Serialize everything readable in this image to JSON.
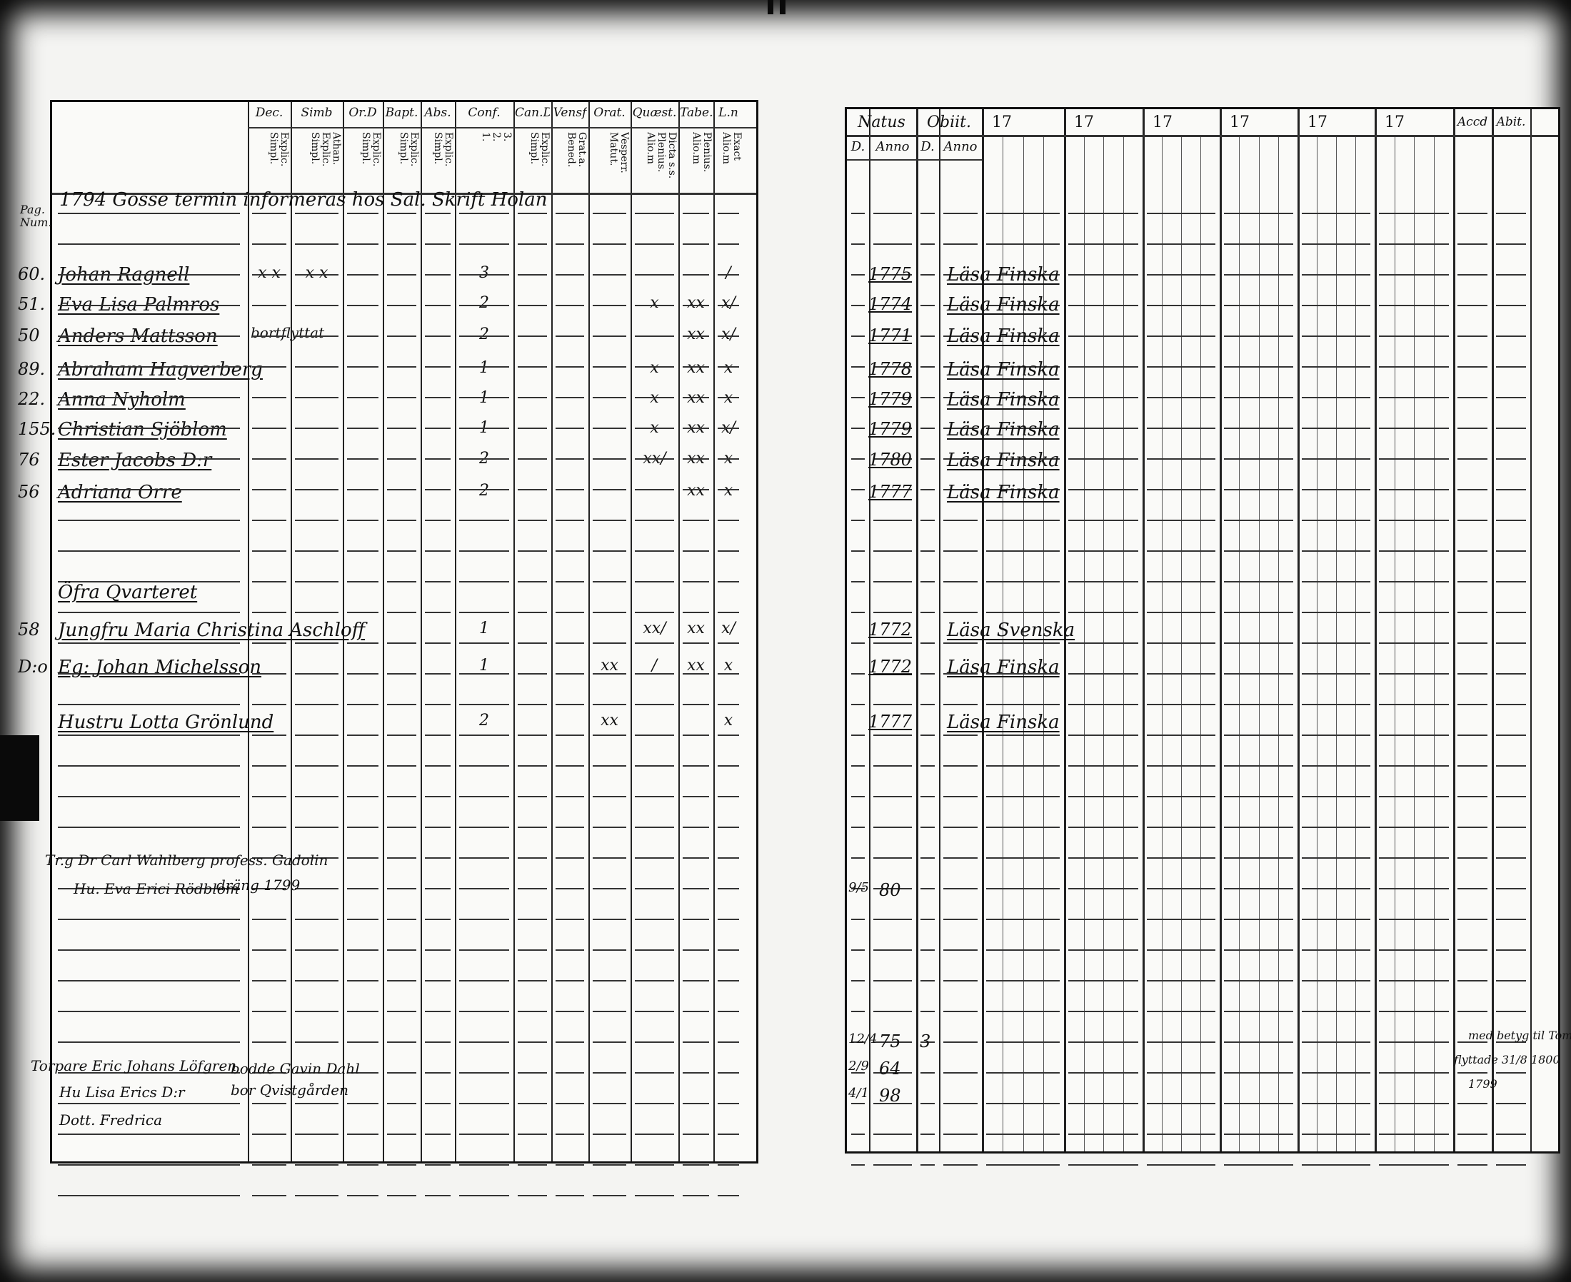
{
  "left_page": {
    "side_label": "Pag. Num.",
    "columns": [
      {
        "head": "Dec.",
        "sub": "Explic.\nSimpl."
      },
      {
        "head": "Simb",
        "sub": "Athan.\nExplic.\nSimpl."
      },
      {
        "head": "Or.D",
        "sub": "Explic.\nSimpl."
      },
      {
        "head": "Bapt.",
        "sub": "Explic.\nSimpl."
      },
      {
        "head": "Abs.",
        "sub": "Explic.\nSimpl."
      },
      {
        "head": "Conf.",
        "sub": "3.\n2.\n1."
      },
      {
        "head": "Can.D",
        "sub": "Explic.\nSimpl."
      },
      {
        "head": "Vensf",
        "sub": "Grat.a.\nBened."
      },
      {
        "head": "Orat.",
        "sub": "Vesperr.\nMatut."
      },
      {
        "head": "Quæst.",
        "sub": "Dicta s.s.\nPlenius.\nAlio.m"
      },
      {
        "head": "Tabe.",
        "sub": "Plenius.\nAlio.m"
      },
      {
        "head": "L.n",
        "sub": "Exact\nAlio.m"
      }
    ],
    "heading": "1794 Gosse termin informeras hos Sal. Skrift Holan",
    "rows": [
      {
        "num": "60.",
        "name": "Johan Ragnell",
        "marks": [
          "x x",
          "x x",
          "",
          "",
          "",
          "3",
          "",
          "",
          "",
          "",
          "",
          "/"
        ]
      },
      {
        "num": "51.",
        "name": "Eva Lisa Palmros",
        "marks": [
          "",
          "",
          "",
          "",
          "",
          "2",
          "",
          "",
          "",
          "x",
          "xx",
          "x/"
        ]
      },
      {
        "num": "50",
        "name": "Anders Mattsson",
        "note": "bortflyttat",
        "marks": [
          "",
          "",
          "",
          "",
          "",
          "2",
          "",
          "",
          "",
          "",
          "xx",
          "x/"
        ]
      },
      {
        "num": "89.",
        "name": "Abraham Hagverberg",
        "marks": [
          "",
          "",
          "",
          "",
          "",
          "1",
          "",
          "",
          "",
          "x",
          "xx",
          "x"
        ]
      },
      {
        "num": "22.",
        "name": "Anna Nyholm",
        "marks": [
          "",
          "",
          "",
          "",
          "",
          "1",
          "",
          "",
          "",
          "x",
          "xx",
          "x"
        ]
      },
      {
        "num": "155.",
        "name": "Christian Sjöblom",
        "marks": [
          "",
          "",
          "",
          "",
          "",
          "1",
          "",
          "",
          "",
          "x",
          "xx",
          "x/"
        ]
      },
      {
        "num": "76",
        "name": "Ester Jacobs D:r",
        "marks": [
          "",
          "",
          "",
          "",
          "",
          "2",
          "",
          "",
          "",
          "xx/",
          "xx",
          "x"
        ]
      },
      {
        "num": "56",
        "name": "Adriana Orre",
        "marks": [
          "",
          "",
          "",
          "",
          "",
          "2",
          "",
          "",
          "",
          "",
          "xx",
          "x"
        ]
      }
    ],
    "section": "Öfra Qvarteret",
    "rows2": [
      {
        "num": "58",
        "name": "Jungfru Maria Christina Aschloff",
        "marks": [
          "",
          "",
          "",
          "",
          "",
          "1",
          "",
          "",
          "",
          "xx/",
          "xx",
          "x/"
        ]
      },
      {
        "num": "D:o",
        "name": "Eg: Johan Michelsson",
        "marks": [
          "",
          "",
          "",
          "",
          "",
          "1",
          "",
          "",
          "xx",
          "/",
          "xx",
          "x"
        ]
      },
      {
        "num": "",
        "name": "Hustru Lotta Grönlund",
        "marks": [
          "",
          "",
          "",
          "",
          "",
          "2",
          "",
          "",
          "xx",
          "",
          "",
          "x"
        ]
      }
    ],
    "notes": [
      "Tr.g Dr Carl Wahlberg profess. Gadolin",
      "Hu. Eva Erici Rödblom",
      "dräng 1799",
      "Torpare Eric Johans Löfgren",
      "Hu Lisa Erics D:r",
      "Dott. Fredrica",
      "bodde Gavin Dahl",
      "bor Qvistgården"
    ]
  },
  "right_page": {
    "headers": {
      "natus": "Natus",
      "obiit": "Obiit.",
      "d": "D.",
      "anno": "Anno",
      "years": [
        "17",
        "17",
        "17",
        "17",
        "17",
        "17"
      ],
      "accd": "Accd",
      "abit": "Abit."
    },
    "rows": [
      {
        "year": "1775",
        "reading": "Läsa Finska"
      },
      {
        "year": "1774",
        "reading": "Läsa Finska"
      },
      {
        "year": "1771",
        "reading": "Läsa Finska"
      },
      {
        "year": "1778",
        "reading": "Läsa Finska"
      },
      {
        "year": "1779",
        "reading": "Läsa Finska"
      },
      {
        "year": "1779",
        "reading": "Läsa Finska"
      },
      {
        "year": "1780",
        "reading": "Läsa Finska"
      },
      {
        "year": "1777",
        "reading": "Läsa Finska"
      }
    ],
    "rows2": [
      {
        "year": "1772",
        "reading": "Läsa Svenska"
      },
      {
        "year": "1772",
        "reading": "Läsa Finska"
      },
      {
        "year": "1777",
        "reading": "Läsa Finska"
      }
    ],
    "births": [
      {
        "d": "9/5",
        "anno": "80"
      },
      {
        "d": "12/4",
        "anno": "75",
        "obit": "3"
      },
      {
        "d": "2/9",
        "anno": "64"
      },
      {
        "d": "4/1",
        "anno": "98"
      }
    ],
    "abit_notes": [
      "med betyg til Tomas",
      "flyttade 31/8 1800",
      "1799"
    ]
  }
}
